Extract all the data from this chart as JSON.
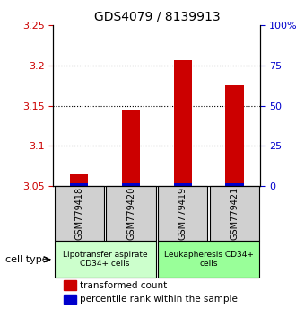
{
  "title": "GDS4079 / 8139913",
  "samples": [
    "GSM779418",
    "GSM779420",
    "GSM779419",
    "GSM779421"
  ],
  "red_values": [
    3.065,
    3.145,
    3.207,
    3.175
  ],
  "blue_values": [
    3.052,
    3.052,
    3.052,
    3.052
  ],
  "ymin": 3.05,
  "ymax": 3.25,
  "yticks_left": [
    3.05,
    3.1,
    3.15,
    3.2,
    3.25
  ],
  "yticks_right": [
    0,
    25,
    50,
    75,
    100
  ],
  "red_color": "#cc0000",
  "blue_color": "#0000cc",
  "bar_width": 0.35,
  "group_labels": [
    "Lipotransfer aspirate\nCD34+ cells",
    "Leukapheresis CD34+\ncells"
  ],
  "group_bg_colors": [
    "#ccffcc",
    "#99ff99"
  ],
  "sample_bg_color": "#d0d0d0",
  "legend_red": "transformed count",
  "legend_blue": "percentile rank within the sample",
  "cell_type_label": "cell type"
}
